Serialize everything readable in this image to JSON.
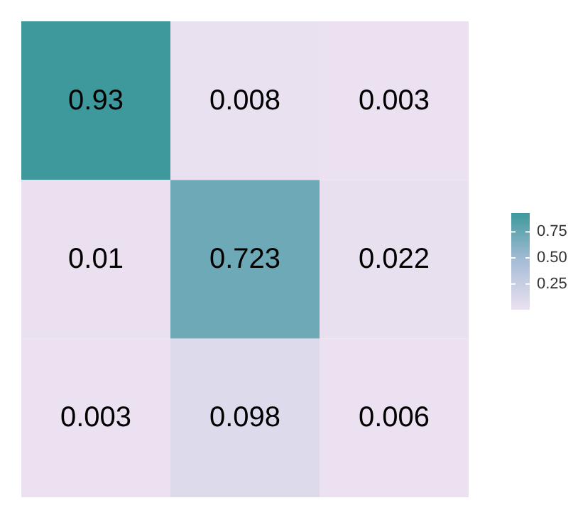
{
  "chart_data": {
    "type": "heatmap",
    "categories": [
      null,
      null,
      null
    ],
    "y_categories": [
      null,
      null,
      null
    ],
    "cells": [
      [
        0.93,
        0.008,
        0.003
      ],
      [
        0.01,
        0.723,
        0.022
      ],
      [
        0.003,
        0.098,
        0.006
      ]
    ],
    "clim": [
      0.003,
      0.93
    ],
    "cticks": [
      {
        "value": 0.25,
        "label": "0.25"
      },
      {
        "value": 0.5,
        "label": "0.50"
      },
      {
        "value": 0.75,
        "label": "0.75"
      }
    ],
    "colors": [
      "#ebe1f0",
      "#a8bdd7",
      "#3e999d"
    ],
    "data_labels": true
  }
}
